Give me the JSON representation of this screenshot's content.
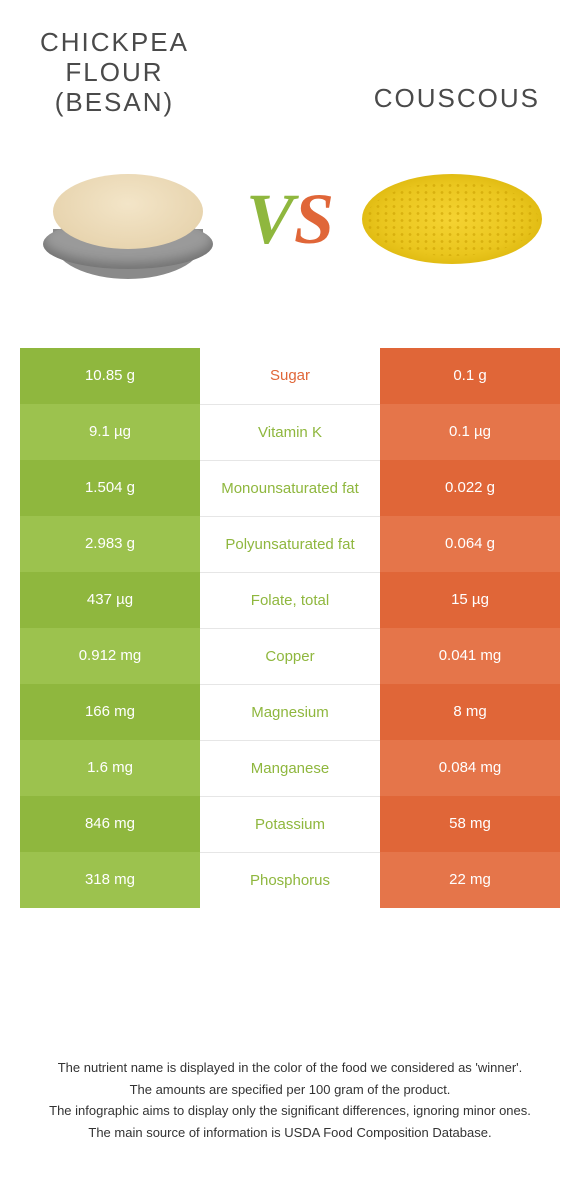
{
  "header": {
    "left_title_line1": "CHICKPEA",
    "left_title_line2": "FLOUR",
    "left_title_line3": "(BESAN)",
    "right_title": "COUSCOUS",
    "vs_v": "V",
    "vs_s": "S"
  },
  "colors": {
    "left": "#8fb73e",
    "left_alt": "#9cc24e",
    "right": "#e06638",
    "right_alt": "#e5754a",
    "mid_text_left": "#8fb73e",
    "mid_text_right": "#e06638"
  },
  "table": {
    "rows": [
      {
        "left": "10.85 g",
        "label": "Sugar",
        "right": "0.1 g",
        "winner": "right"
      },
      {
        "left": "9.1 µg",
        "label": "Vitamin K",
        "right": "0.1 µg",
        "winner": "left"
      },
      {
        "left": "1.504 g",
        "label": "Monounsaturated fat",
        "right": "0.022 g",
        "winner": "left"
      },
      {
        "left": "2.983 g",
        "label": "Polyunsaturated fat",
        "right": "0.064 g",
        "winner": "left"
      },
      {
        "left": "437 µg",
        "label": "Folate, total",
        "right": "15 µg",
        "winner": "left"
      },
      {
        "left": "0.912 mg",
        "label": "Copper",
        "right": "0.041 mg",
        "winner": "left"
      },
      {
        "left": "166 mg",
        "label": "Magnesium",
        "right": "8 mg",
        "winner": "left"
      },
      {
        "left": "1.6 mg",
        "label": "Manganese",
        "right": "0.084 mg",
        "winner": "left"
      },
      {
        "left": "846 mg",
        "label": "Potassium",
        "right": "58 mg",
        "winner": "left"
      },
      {
        "left": "318 mg",
        "label": "Phosphorus",
        "right": "22 mg",
        "winner": "left"
      }
    ]
  },
  "footer": {
    "line1": "The nutrient name is displayed in the color of the food we considered as 'winner'.",
    "line2": "The amounts are specified per 100 gram of the product.",
    "line3": "The infographic aims to display only the significant differences, ignoring minor ones.",
    "line4": "The main source of information is USDA Food Composition Database."
  }
}
